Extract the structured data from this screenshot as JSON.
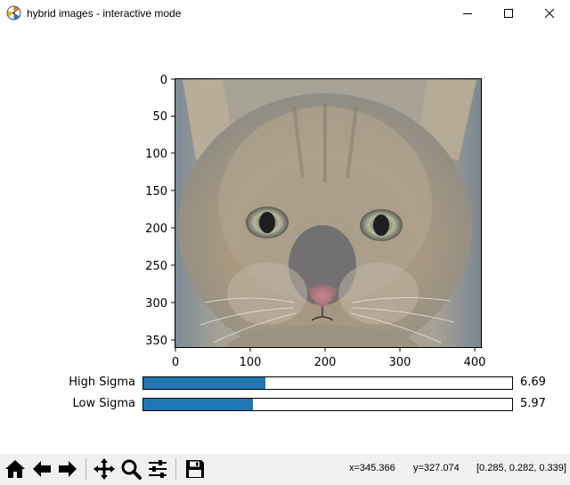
{
  "window": {
    "title": "hybrid images - interactive mode"
  },
  "plot": {
    "image_description": "hybrid cat face image",
    "x_ticks": [
      "0",
      "100",
      "200",
      "300",
      "400"
    ],
    "y_ticks": [
      "0",
      "50",
      "100",
      "150",
      "200",
      "250",
      "300",
      "350"
    ]
  },
  "sliders": [
    {
      "label": "High Sigma",
      "value_text": "6.69",
      "fraction": 0.331
    },
    {
      "label": "Low Sigma",
      "value_text": "5.97",
      "fraction": 0.297
    }
  ],
  "toolbar": {
    "buttons": [
      "home-icon",
      "back-arrow-icon",
      "forward-arrow-icon",
      "pan-icon",
      "zoom-icon",
      "configure-subplots-icon",
      "save-icon"
    ],
    "status_x": "x=345.366",
    "status_y": "y=327.074",
    "status_rgb": "[0.285, 0.282, 0.339]"
  },
  "colors": {
    "slider_fill": "#1f77b4",
    "toolbar_bg": "#f0f0f0"
  }
}
